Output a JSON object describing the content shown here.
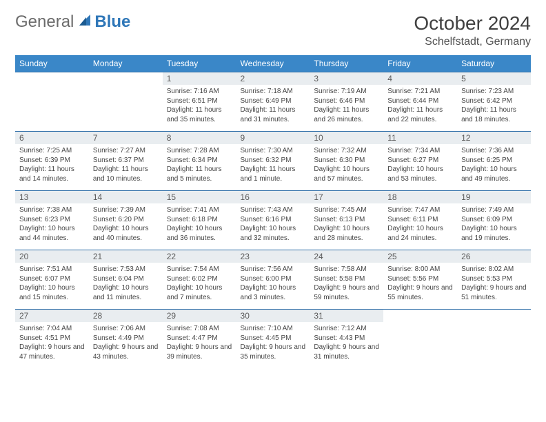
{
  "logo": {
    "text_a": "General",
    "text_b": "Blue"
  },
  "title": "October 2024",
  "subtitle": "Schelfstadt, Germany",
  "colors": {
    "header_bg": "#3a87c8",
    "header_text": "#ffffff",
    "daynum_bg": "#e9edf0",
    "row_border": "#2f6ea8",
    "body_text": "#454545",
    "logo_blue": "#2f77b8"
  },
  "day_headers": [
    "Sunday",
    "Monday",
    "Tuesday",
    "Wednesday",
    "Thursday",
    "Friday",
    "Saturday"
  ],
  "weeks": [
    [
      {
        "n": "",
        "sr": "",
        "ss": "",
        "dl": "",
        "empty": true
      },
      {
        "n": "",
        "sr": "",
        "ss": "",
        "dl": "",
        "empty": true
      },
      {
        "n": "1",
        "sr": "Sunrise: 7:16 AM",
        "ss": "Sunset: 6:51 PM",
        "dl": "Daylight: 11 hours and 35 minutes."
      },
      {
        "n": "2",
        "sr": "Sunrise: 7:18 AM",
        "ss": "Sunset: 6:49 PM",
        "dl": "Daylight: 11 hours and 31 minutes."
      },
      {
        "n": "3",
        "sr": "Sunrise: 7:19 AM",
        "ss": "Sunset: 6:46 PM",
        "dl": "Daylight: 11 hours and 26 minutes."
      },
      {
        "n": "4",
        "sr": "Sunrise: 7:21 AM",
        "ss": "Sunset: 6:44 PM",
        "dl": "Daylight: 11 hours and 22 minutes."
      },
      {
        "n": "5",
        "sr": "Sunrise: 7:23 AM",
        "ss": "Sunset: 6:42 PM",
        "dl": "Daylight: 11 hours and 18 minutes."
      }
    ],
    [
      {
        "n": "6",
        "sr": "Sunrise: 7:25 AM",
        "ss": "Sunset: 6:39 PM",
        "dl": "Daylight: 11 hours and 14 minutes."
      },
      {
        "n": "7",
        "sr": "Sunrise: 7:27 AM",
        "ss": "Sunset: 6:37 PM",
        "dl": "Daylight: 11 hours and 10 minutes."
      },
      {
        "n": "8",
        "sr": "Sunrise: 7:28 AM",
        "ss": "Sunset: 6:34 PM",
        "dl": "Daylight: 11 hours and 5 minutes."
      },
      {
        "n": "9",
        "sr": "Sunrise: 7:30 AM",
        "ss": "Sunset: 6:32 PM",
        "dl": "Daylight: 11 hours and 1 minute."
      },
      {
        "n": "10",
        "sr": "Sunrise: 7:32 AM",
        "ss": "Sunset: 6:30 PM",
        "dl": "Daylight: 10 hours and 57 minutes."
      },
      {
        "n": "11",
        "sr": "Sunrise: 7:34 AM",
        "ss": "Sunset: 6:27 PM",
        "dl": "Daylight: 10 hours and 53 minutes."
      },
      {
        "n": "12",
        "sr": "Sunrise: 7:36 AM",
        "ss": "Sunset: 6:25 PM",
        "dl": "Daylight: 10 hours and 49 minutes."
      }
    ],
    [
      {
        "n": "13",
        "sr": "Sunrise: 7:38 AM",
        "ss": "Sunset: 6:23 PM",
        "dl": "Daylight: 10 hours and 44 minutes."
      },
      {
        "n": "14",
        "sr": "Sunrise: 7:39 AM",
        "ss": "Sunset: 6:20 PM",
        "dl": "Daylight: 10 hours and 40 minutes."
      },
      {
        "n": "15",
        "sr": "Sunrise: 7:41 AM",
        "ss": "Sunset: 6:18 PM",
        "dl": "Daylight: 10 hours and 36 minutes."
      },
      {
        "n": "16",
        "sr": "Sunrise: 7:43 AM",
        "ss": "Sunset: 6:16 PM",
        "dl": "Daylight: 10 hours and 32 minutes."
      },
      {
        "n": "17",
        "sr": "Sunrise: 7:45 AM",
        "ss": "Sunset: 6:13 PM",
        "dl": "Daylight: 10 hours and 28 minutes."
      },
      {
        "n": "18",
        "sr": "Sunrise: 7:47 AM",
        "ss": "Sunset: 6:11 PM",
        "dl": "Daylight: 10 hours and 24 minutes."
      },
      {
        "n": "19",
        "sr": "Sunrise: 7:49 AM",
        "ss": "Sunset: 6:09 PM",
        "dl": "Daylight: 10 hours and 19 minutes."
      }
    ],
    [
      {
        "n": "20",
        "sr": "Sunrise: 7:51 AM",
        "ss": "Sunset: 6:07 PM",
        "dl": "Daylight: 10 hours and 15 minutes."
      },
      {
        "n": "21",
        "sr": "Sunrise: 7:53 AM",
        "ss": "Sunset: 6:04 PM",
        "dl": "Daylight: 10 hours and 11 minutes."
      },
      {
        "n": "22",
        "sr": "Sunrise: 7:54 AM",
        "ss": "Sunset: 6:02 PM",
        "dl": "Daylight: 10 hours and 7 minutes."
      },
      {
        "n": "23",
        "sr": "Sunrise: 7:56 AM",
        "ss": "Sunset: 6:00 PM",
        "dl": "Daylight: 10 hours and 3 minutes."
      },
      {
        "n": "24",
        "sr": "Sunrise: 7:58 AM",
        "ss": "Sunset: 5:58 PM",
        "dl": "Daylight: 9 hours and 59 minutes."
      },
      {
        "n": "25",
        "sr": "Sunrise: 8:00 AM",
        "ss": "Sunset: 5:56 PM",
        "dl": "Daylight: 9 hours and 55 minutes."
      },
      {
        "n": "26",
        "sr": "Sunrise: 8:02 AM",
        "ss": "Sunset: 5:53 PM",
        "dl": "Daylight: 9 hours and 51 minutes."
      }
    ],
    [
      {
        "n": "27",
        "sr": "Sunrise: 7:04 AM",
        "ss": "Sunset: 4:51 PM",
        "dl": "Daylight: 9 hours and 47 minutes."
      },
      {
        "n": "28",
        "sr": "Sunrise: 7:06 AM",
        "ss": "Sunset: 4:49 PM",
        "dl": "Daylight: 9 hours and 43 minutes."
      },
      {
        "n": "29",
        "sr": "Sunrise: 7:08 AM",
        "ss": "Sunset: 4:47 PM",
        "dl": "Daylight: 9 hours and 39 minutes."
      },
      {
        "n": "30",
        "sr": "Sunrise: 7:10 AM",
        "ss": "Sunset: 4:45 PM",
        "dl": "Daylight: 9 hours and 35 minutes."
      },
      {
        "n": "31",
        "sr": "Sunrise: 7:12 AM",
        "ss": "Sunset: 4:43 PM",
        "dl": "Daylight: 9 hours and 31 minutes."
      },
      {
        "n": "",
        "sr": "",
        "ss": "",
        "dl": "",
        "empty": true
      },
      {
        "n": "",
        "sr": "",
        "ss": "",
        "dl": "",
        "empty": true
      }
    ]
  ]
}
